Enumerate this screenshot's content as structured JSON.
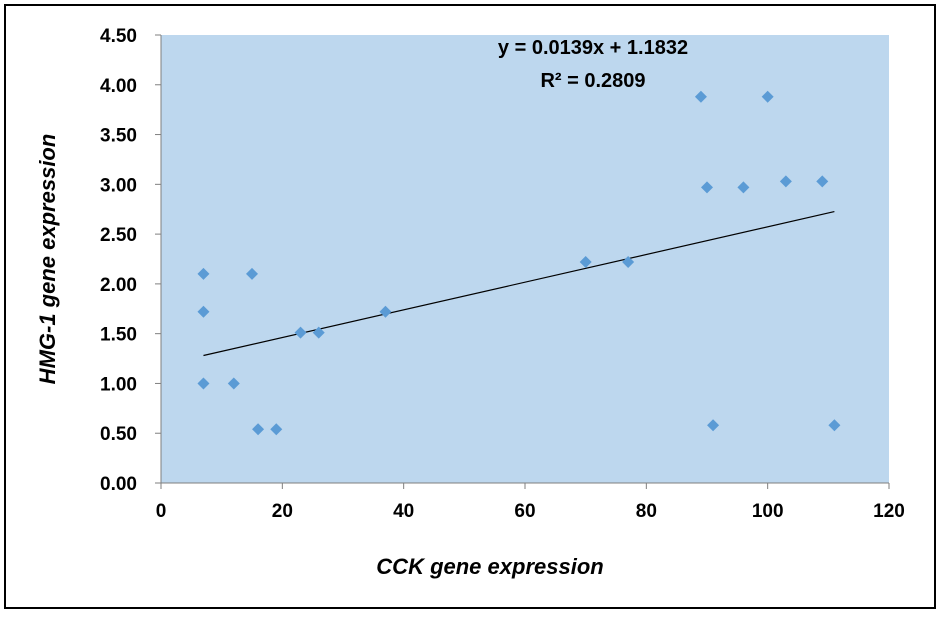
{
  "chart_data": {
    "type": "scatter",
    "xlabel": "CCK gene expression",
    "ylabel": "HMG-1 gene expression",
    "xlim": [
      0,
      120
    ],
    "ylim": [
      0,
      4.5
    ],
    "x_ticks": [
      "0",
      "20",
      "40",
      "60",
      "80",
      "100",
      "120"
    ],
    "x_tick_values": [
      0,
      20,
      40,
      60,
      80,
      100,
      120
    ],
    "y_ticks": [
      "0.00",
      "0.50",
      "1.00",
      "1.50",
      "2.00",
      "2.50",
      "3.00",
      "3.50",
      "4.00",
      "4.50"
    ],
    "y_tick_values": [
      0,
      0.5,
      1.0,
      1.5,
      2.0,
      2.5,
      3.0,
      3.5,
      4.0,
      4.5
    ],
    "grid": false,
    "legend": "none",
    "colors": {
      "plot_area": "#bdd7ee",
      "marker": "#5b9bd5",
      "trendline": "#000000"
    },
    "points": [
      {
        "x": 7,
        "y": 2.1
      },
      {
        "x": 7,
        "y": 1.72
      },
      {
        "x": 7,
        "y": 1.0
      },
      {
        "x": 12,
        "y": 1.0
      },
      {
        "x": 15,
        "y": 2.1
      },
      {
        "x": 16,
        "y": 0.54
      },
      {
        "x": 19,
        "y": 0.54
      },
      {
        "x": 23,
        "y": 1.51
      },
      {
        "x": 26,
        "y": 1.51
      },
      {
        "x": 37,
        "y": 1.72
      },
      {
        "x": 70,
        "y": 2.22
      },
      {
        "x": 77,
        "y": 2.22
      },
      {
        "x": 89,
        "y": 3.88
      },
      {
        "x": 90,
        "y": 2.97
      },
      {
        "x": 91,
        "y": 0.58
      },
      {
        "x": 96,
        "y": 2.97
      },
      {
        "x": 100,
        "y": 3.88
      },
      {
        "x": 103,
        "y": 3.03
      },
      {
        "x": 109,
        "y": 3.03
      },
      {
        "x": 111,
        "y": 0.58
      }
    ],
    "trendline": {
      "type": "linear",
      "slope": 0.0139,
      "intercept": 1.1832,
      "x_range": [
        7,
        111
      ],
      "equation": "y = 0.0139x + 1.1832",
      "r_squared": "R² = 0.2809"
    }
  }
}
